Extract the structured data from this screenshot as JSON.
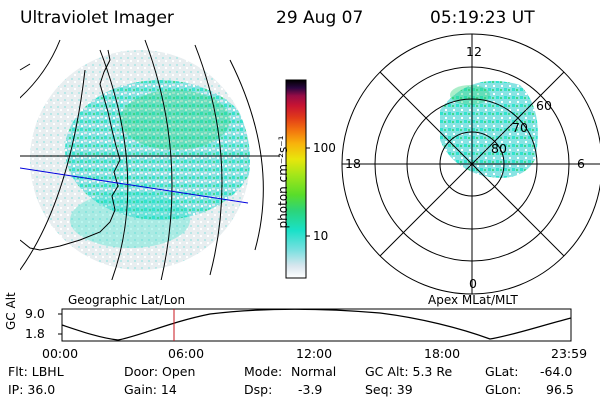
{
  "header": {
    "instrument": "Ultraviolet Imager",
    "date": "29 Aug 07",
    "time": "05:19:23 UT"
  },
  "colorbar": {
    "label": "photon cm⁻²s⁻¹",
    "ticks": [
      "100",
      "10"
    ],
    "scale": "log",
    "colors": [
      "#ffffff",
      "#d9e6ee",
      "#7be0e0",
      "#19e1c8",
      "#2cd47a",
      "#59dd2a",
      "#a4e619",
      "#e8e60c",
      "#f8b20c",
      "#f2700f",
      "#e13a19",
      "#c81432",
      "#960c46",
      "#5a0a50",
      "#2a0640",
      "#000000"
    ]
  },
  "maps": {
    "geographic_label": "Geographic Lat/Lon",
    "apex_label": "Apex MLat/MLT"
  },
  "polar": {
    "mlt_labels": {
      "top": "12",
      "left": "18",
      "right": "6",
      "bottom": "0"
    },
    "mlat_labels": [
      "60",
      "70",
      "80"
    ]
  },
  "altitude_plot": {
    "ylabel": "GC Alt",
    "yticks": [
      "9.0",
      "1.8"
    ],
    "xticks": [
      "00:00",
      "06:00",
      "12:00",
      "18:00",
      "23:59"
    ],
    "marker_time": "05:19"
  },
  "info": {
    "flt": "Flt: LBHL",
    "ip": "IP: 36.0",
    "door": "Door: Open",
    "gain": "Gain: 14",
    "mode_label": "Mode:",
    "mode_value": "Normal",
    "dsp_label": "Dsp:",
    "dsp_value": "-3.9",
    "gcalt": "GC Alt: 5.3 Re",
    "seq": "Seq: 39",
    "glat_label": "GLat:",
    "glat_value": "-64.0",
    "glon_label": "GLon:",
    "glon_value": "96.5"
  }
}
